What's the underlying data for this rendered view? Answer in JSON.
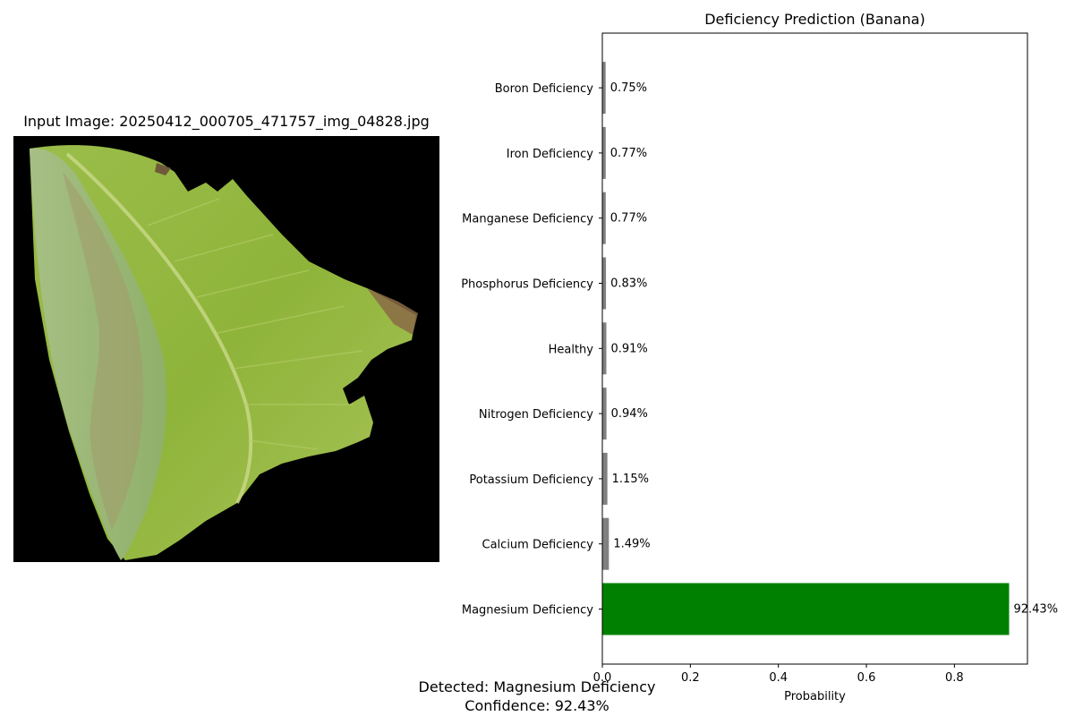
{
  "image_panel": {
    "title": "Input Image: 20250412_000705_471757_img_04828.jpg"
  },
  "chart_data": {
    "type": "bar",
    "orientation": "horizontal",
    "title": "Deficiency Prediction (Banana)",
    "xlabel": "Probability",
    "ylabel": "",
    "xlim": [
      0,
      0.966
    ],
    "xticks": [
      "0.0",
      "0.2",
      "0.4",
      "0.6",
      "0.8"
    ],
    "grid": false,
    "categories": [
      "Magnesium Deficiency",
      "Calcium Deficiency",
      "Potassium Deficiency",
      "Nitrogen Deficiency",
      "Healthy",
      "Phosphorus Deficiency",
      "Manganese Deficiency",
      "Iron Deficiency",
      "Boron Deficiency"
    ],
    "values": [
      0.9243,
      0.0149,
      0.0115,
      0.0094,
      0.0091,
      0.0083,
      0.0077,
      0.0077,
      0.0075
    ],
    "value_labels": [
      "92.43%",
      "1.49%",
      "1.15%",
      "0.94%",
      "0.91%",
      "0.83%",
      "0.77%",
      "0.77%",
      "0.75%"
    ],
    "colors": [
      "#008000",
      "#808080",
      "#808080",
      "#808080",
      "#808080",
      "#808080",
      "#808080",
      "#808080",
      "#808080"
    ]
  },
  "result": {
    "detected": "Detected: Magnesium Deficiency",
    "confidence": "Confidence: 92.43%"
  }
}
